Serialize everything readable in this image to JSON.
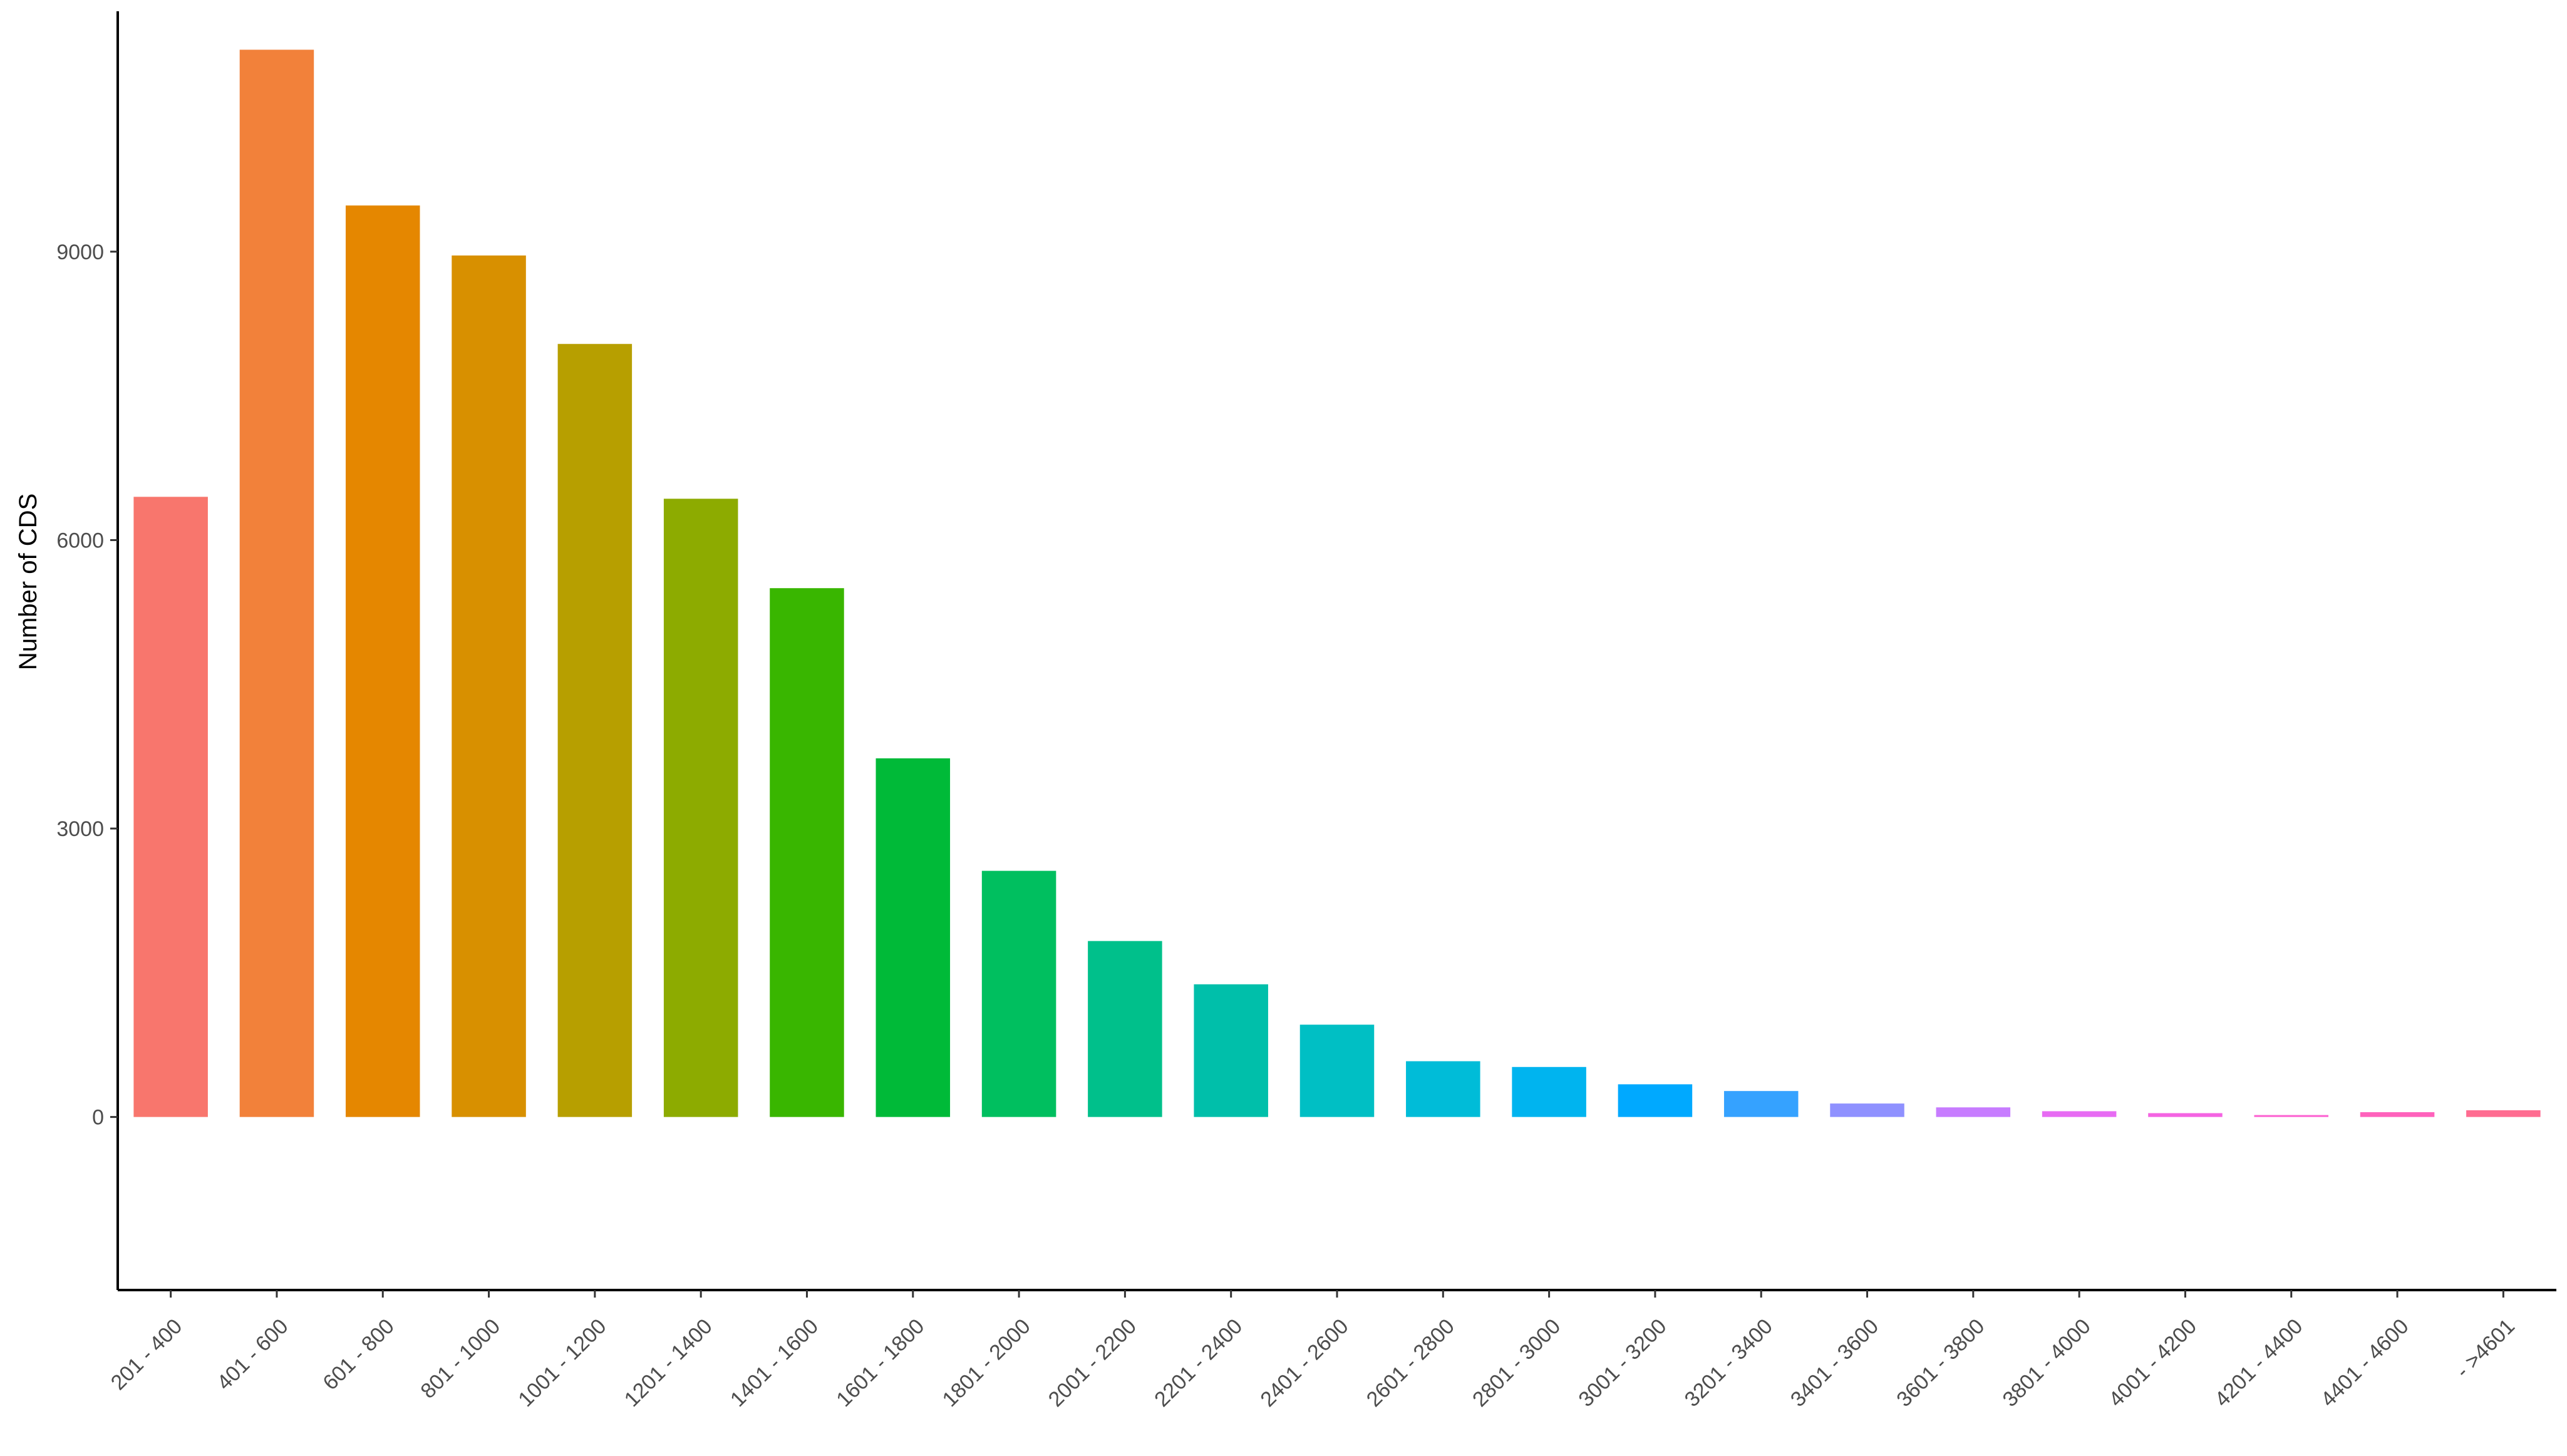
{
  "chart_data": {
    "type": "bar",
    "title": "",
    "xlabel": "",
    "ylabel": "Number of CDS",
    "ylim": [
      -1800,
      11500
    ],
    "yticks": [
      0,
      3000,
      6000,
      9000
    ],
    "grid": false,
    "legend": "none",
    "categories": [
      "201 - 400",
      "401 - 600",
      "601 - 800",
      "801 - 1000",
      "1001 - 1200",
      "1201 - 1400",
      "1401 - 1600",
      "1601 - 1800",
      "1801 - 2000",
      "2001 - 2200",
      "2201 - 2400",
      "2401 - 2600",
      "2601 - 2800",
      "2801 - 3000",
      "3001 - 3200",
      "3201 - 3400",
      "3401 - 3600",
      "3601 - 3800",
      "3801 - 4000",
      "4001 - 4200",
      "4201 - 4400",
      "4401 - 4600",
      "- >4601"
    ],
    "values": [
      6450,
      11100,
      9480,
      8960,
      8040,
      6430,
      5500,
      3730,
      2560,
      1830,
      1380,
      960,
      580,
      520,
      340,
      270,
      140,
      100,
      60,
      40,
      20,
      50,
      70
    ],
    "colors": [
      "#F8766D",
      "#F2813A",
      "#E58700",
      "#D89000",
      "#B79F00",
      "#8DAB00",
      "#39B600",
      "#00BA38",
      "#00BF5F",
      "#00C08B",
      "#00BFAA",
      "#00BFC4",
      "#00BCD8",
      "#00B4EF",
      "#00A9FF",
      "#35A2FF",
      "#8F91FF",
      "#C77CFF",
      "#E76BF3",
      "#F464E2",
      "#FD61D1",
      "#FF62BC",
      "#FF6C91"
    ]
  }
}
